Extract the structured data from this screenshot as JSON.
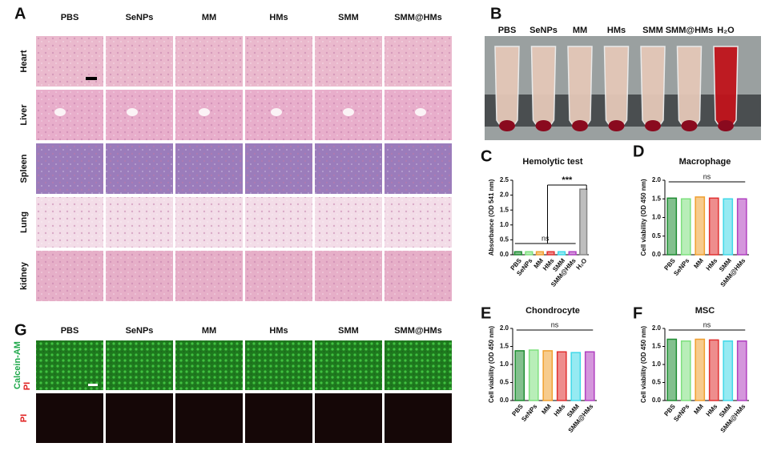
{
  "figure": {
    "panel_letters": [
      "A",
      "B",
      "C",
      "D",
      "E",
      "F",
      "G"
    ],
    "histology": {
      "columns": [
        "PBS",
        "SeNPs",
        "MM",
        "HMs",
        "SMM",
        "SMM@HMs"
      ],
      "rows": [
        "Heart",
        "Liver",
        "Spleen",
        "Lung",
        "kidney"
      ]
    },
    "hemolysis_photo": {
      "columns": [
        "PBS",
        "SeNPs",
        "MM",
        "HMs",
        "SMM",
        "SMM@HMs",
        "H₂O"
      ]
    },
    "live_dead": {
      "columns": [
        "PBS",
        "SeNPs",
        "MM",
        "HMs",
        "SMM",
        "SMM@HMs"
      ],
      "row_labels": [
        "Calcein-AM",
        "PI",
        "PI"
      ]
    }
  },
  "chart_data": [
    {
      "type": "bar",
      "title": "Hemolytic test",
      "y_label": "Absorbance (OD 541 nm)",
      "categories": [
        "PBS",
        "SeNPs",
        "MM",
        "HMs",
        "SMM",
        "SMM@HMs",
        "H₂O"
      ],
      "values": [
        0.1,
        0.1,
        0.1,
        0.1,
        0.1,
        0.1,
        2.2
      ],
      "colors": [
        "#1e8c32",
        "#7ee07e",
        "#f0a030",
        "#e03030",
        "#40d8e8",
        "#b040c0",
        "#888888"
      ],
      "ylim": [
        0,
        2.5
      ],
      "yticks": [
        {
          "value": 0,
          "label": "0.0"
        },
        0.5,
        {
          "value": 1,
          "label": "1.0"
        },
        1.5,
        {
          "value": 2,
          "label": "2.0"
        },
        2.5
      ],
      "annotations": [
        "ns",
        "***"
      ]
    },
    {
      "type": "bar",
      "title": "Macrophage",
      "y_label": "Cell viability (OD 450 nm)",
      "categories": [
        "PBS",
        "SeNPs",
        "MM",
        "HMs",
        "SMM",
        "SMM@HMs"
      ],
      "values": [
        1.52,
        1.5,
        1.55,
        1.52,
        1.5,
        1.5
      ],
      "colors": [
        "#1e8c32",
        "#7ee07e",
        "#f0a030",
        "#e03030",
        "#40d8e8",
        "#b040c0"
      ],
      "ylim": [
        0,
        2
      ],
      "yticks": [
        {
          "value": 0,
          "label": "0.0"
        },
        0.5,
        {
          "value": 1,
          "label": "1.0"
        },
        1.5,
        {
          "value": 2,
          "label": "2.0"
        }
      ],
      "annotations": [
        "ns"
      ]
    },
    {
      "type": "bar",
      "title": "Chondrocyte",
      "y_label": "Cell viability (OD 450 nm)",
      "categories": [
        "PBS",
        "SeNPs",
        "MM",
        "HMs",
        "SMM",
        "SMM@HMs"
      ],
      "values": [
        1.38,
        1.4,
        1.38,
        1.35,
        1.33,
        1.35
      ],
      "colors": [
        "#1e8c32",
        "#7ee07e",
        "#f0a030",
        "#e03030",
        "#40d8e8",
        "#b040c0"
      ],
      "ylim": [
        0,
        2
      ],
      "yticks": [
        {
          "value": 0,
          "label": "0.0"
        },
        0.5,
        {
          "value": 1,
          "label": "1.0"
        },
        1.5,
        {
          "value": 2,
          "label": "2.0"
        }
      ],
      "annotations": [
        "ns"
      ]
    },
    {
      "type": "bar",
      "title": "MSC",
      "y_label": "Cell viability (OD 450 nm)",
      "categories": [
        "PBS",
        "SeNPs",
        "MM",
        "HMs",
        "SMM",
        "SMM@HMs"
      ],
      "values": [
        1.7,
        1.65,
        1.7,
        1.68,
        1.65,
        1.65
      ],
      "colors": [
        "#1e8c32",
        "#7ee07e",
        "#f0a030",
        "#e03030",
        "#40d8e8",
        "#b040c0"
      ],
      "ylim": [
        0,
        2
      ],
      "yticks": [
        {
          "value": 0,
          "label": "0.0"
        },
        0.5,
        {
          "value": 1,
          "label": "1.0"
        },
        1.5,
        {
          "value": 2,
          "label": "2.0"
        }
      ],
      "annotations": [
        "ns"
      ]
    }
  ]
}
